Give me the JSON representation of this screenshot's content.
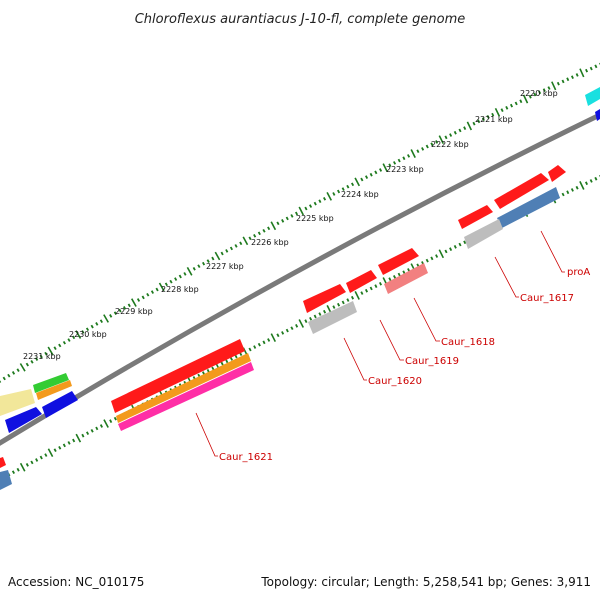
{
  "title": "Chloroflexus aurantiacus J-10-fl, complete genome",
  "footer": {
    "accession": "Accession: NC_010175",
    "summary": "Topology: circular; Length: 5,258,541 bp; Genes: 3,911"
  },
  "ruler": {
    "labels": [
      "2220 kbp",
      "2221 kbp",
      "2222 kbp",
      "2223 kbp",
      "2224 kbp",
      "2225 kbp",
      "2226 kbp",
      "2227 kbp",
      "2228 kbp",
      "2229 kbp",
      "2230 kbp",
      "2231 kbp"
    ],
    "tick_color": "#1e7a1e"
  },
  "genes": {
    "labels": [
      "proA",
      "Caur_1617",
      "Caur_1618",
      "Caur_1619",
      "Caur_1620",
      "Caur_1621"
    ],
    "label_color": "#cc0000"
  },
  "colors": {
    "backbone": "#7a7a7a",
    "cds_red": "#ff1a1a",
    "cds_gray": "#bdbdbd",
    "cds_salmon": "#f28080",
    "cds_orange": "#f39a1c",
    "cds_magenta": "#ff2ea6",
    "cds_blue": "#1010e0",
    "cds_steel": "#4f7fb5",
    "cds_yellow": "#f2e79a",
    "cds_green": "#33cc33",
    "cds_cyan": "#19e0e0"
  }
}
